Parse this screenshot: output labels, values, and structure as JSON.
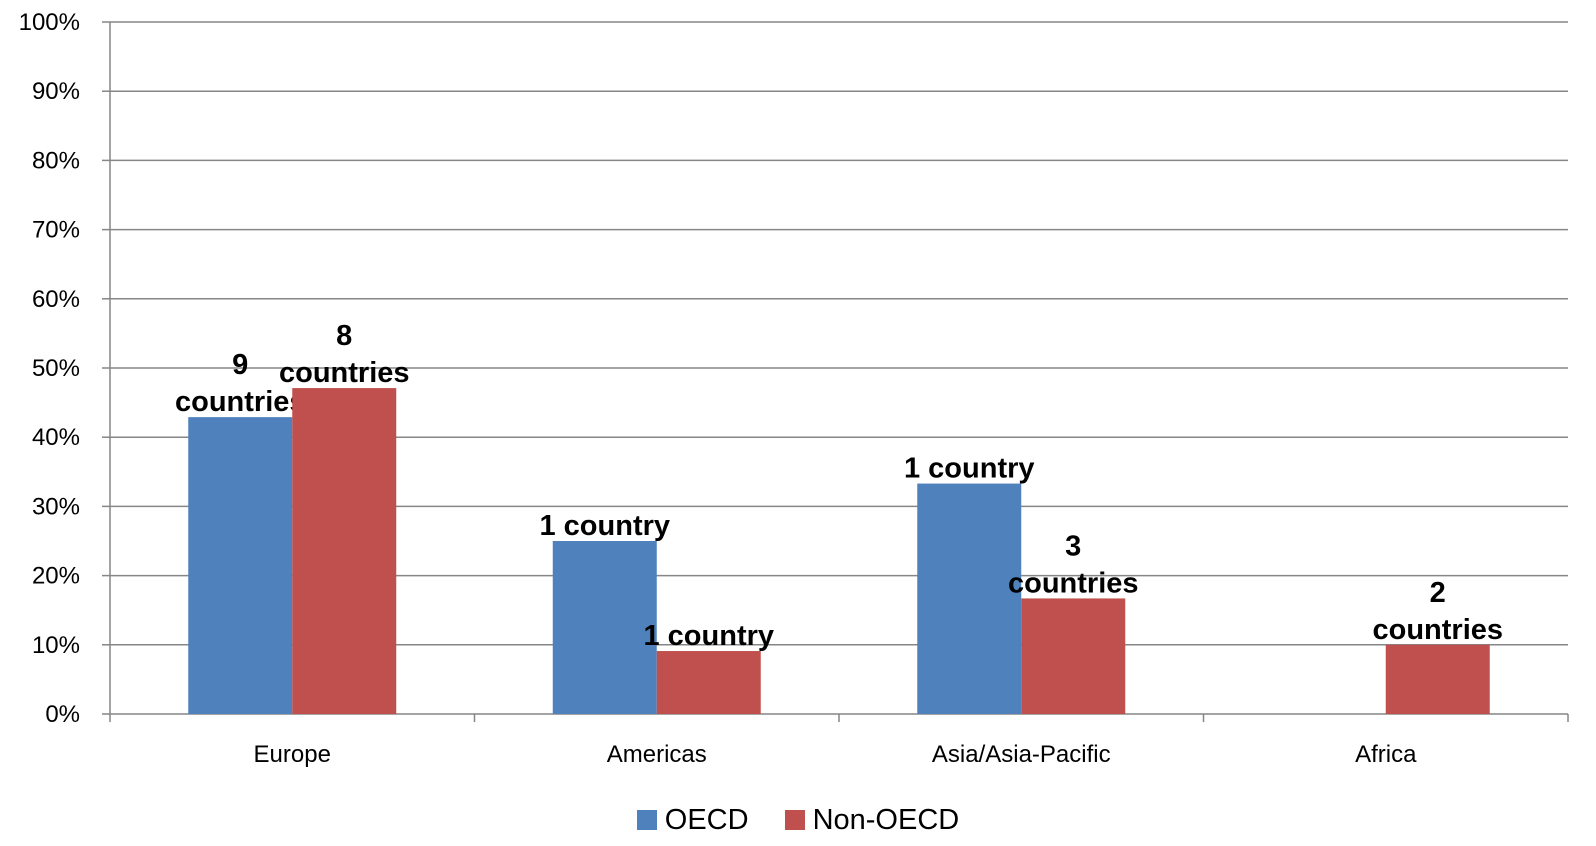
{
  "chart_data": {
    "type": "bar",
    "categories": [
      "Europe",
      "Americas",
      "Asia/Asia-Pacific",
      "Africa"
    ],
    "series": [
      {
        "name": "OECD",
        "color": "#4F81BD",
        "values": [
          42.9,
          25.0,
          33.3,
          0
        ],
        "labels": [
          [
            "9",
            "countries"
          ],
          [
            "1 country"
          ],
          [
            "1 country"
          ],
          null
        ]
      },
      {
        "name": "Non-OECD",
        "color": "#C0504D",
        "values": [
          47.1,
          9.1,
          16.7,
          10.0
        ],
        "labels": [
          [
            "8",
            "countries"
          ],
          [
            "1 country"
          ],
          [
            "3",
            "countries"
          ],
          [
            "2",
            "countries"
          ]
        ]
      }
    ],
    "ylim": [
      0,
      100
    ],
    "yticks": [
      "0%",
      "10%",
      "20%",
      "30%",
      "40%",
      "50%",
      "60%",
      "70%",
      "80%",
      "90%",
      "100%"
    ],
    "grid": true,
    "legend_position": "bottom",
    "xlabel": "",
    "ylabel": "",
    "title": ""
  }
}
